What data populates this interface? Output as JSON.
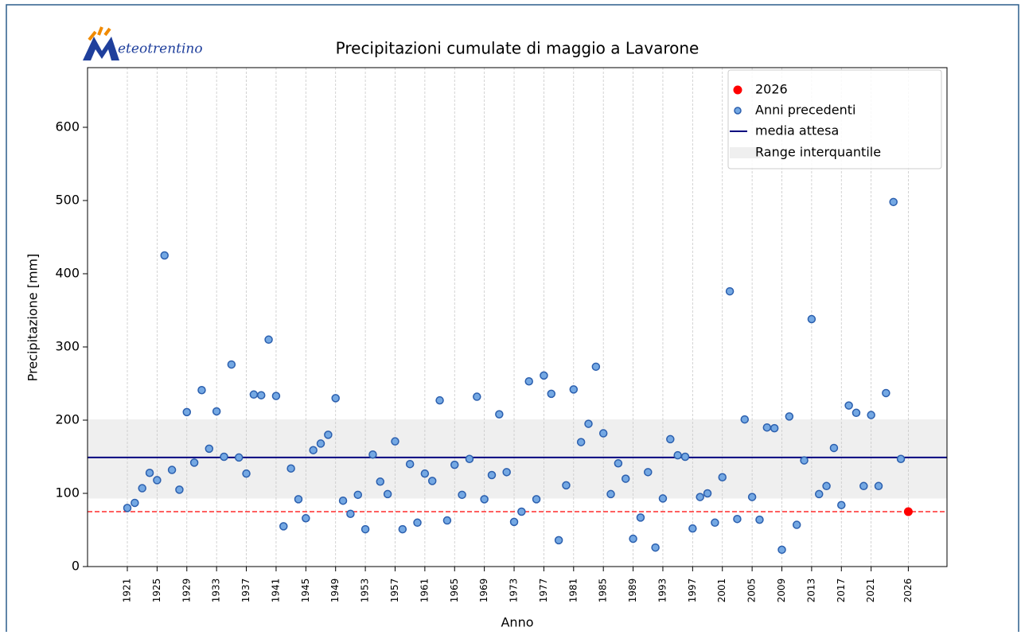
{
  "chart_data": {
    "type": "scatter",
    "logo": "eteotrentino",
    "title": "Precipitazioni cumulate di maggio a Lavarone",
    "x_label": "Anno",
    "y_label": "Precipitazione [mm]",
    "xlim": [
      1915.65,
      2031.2
    ],
    "ylim": [
      0,
      681.5
    ],
    "xticks": [
      1921,
      1925,
      1929,
      1933,
      1937,
      1941,
      1945,
      1949,
      1953,
      1957,
      1961,
      1965,
      1969,
      1973,
      1977,
      1981,
      1985,
      1989,
      1993,
      1997,
      2001,
      2005,
      2009,
      2013,
      2017,
      2021,
      2026
    ],
    "yticks": [
      0,
      100,
      200,
      300,
      400,
      500,
      600
    ],
    "grid": "x",
    "legend": "upper right",
    "series": [
      {
        "name": "2026",
        "color": "#ff0000",
        "x": [
          2026
        ],
        "values": [
          75
        ]
      },
      {
        "name": "Anni precedenti",
        "color": "#74a8e3",
        "x": [
          1921,
          1922,
          1923,
          1924,
          1925,
          1926,
          1927,
          1928,
          1929,
          1930,
          1931,
          1932,
          1933,
          1934,
          1935,
          1936,
          1937,
          1938,
          1939,
          1940,
          1941,
          1942,
          1943,
          1944,
          1945,
          1946,
          1947,
          1948,
          1949,
          1950,
          1951,
          1952,
          1953,
          1954,
          1955,
          1956,
          1957,
          1958,
          1959,
          1960,
          1961,
          1962,
          1963,
          1964,
          1965,
          1966,
          1967,
          1968,
          1969,
          1970,
          1971,
          1972,
          1973,
          1974,
          1975,
          1976,
          1977,
          1978,
          1979,
          1980,
          1981,
          1982,
          1983,
          1984,
          1985,
          1986,
          1987,
          1988,
          1989,
          1990,
          1991,
          1992,
          1993,
          1994,
          1995,
          1996,
          1997,
          1998,
          1999,
          2000,
          2001,
          2002,
          2003,
          2004,
          2005,
          2006,
          2007,
          2008,
          2009,
          2010,
          2011,
          2012,
          2013,
          2014,
          2015,
          2016,
          2017,
          2018,
          2019,
          2020,
          2021,
          2022,
          2023,
          2024,
          2025
        ],
        "values": [
          80,
          87,
          107,
          128,
          118,
          425,
          132,
          105,
          211,
          142,
          241,
          161,
          212,
          150,
          276,
          149,
          127,
          235,
          234,
          310,
          233,
          55,
          134,
          92,
          66,
          159,
          168,
          180,
          230,
          90,
          72,
          98,
          51,
          153,
          116,
          99,
          171,
          51,
          140,
          60,
          127,
          117,
          227,
          63,
          139,
          98,
          147,
          232,
          92,
          125,
          208,
          129,
          61,
          75,
          253,
          92,
          261,
          236,
          36,
          111,
          242,
          170,
          195,
          273,
          182,
          99,
          141,
          120,
          38,
          67,
          129,
          26,
          93,
          174,
          152,
          150,
          52,
          95,
          100,
          60,
          122,
          376,
          65,
          201,
          95,
          64,
          190,
          189,
          23,
          205,
          57,
          145,
          338,
          99,
          110,
          162,
          84,
          220,
          210,
          110,
          207,
          110,
          237,
          498,
          147
        ]
      },
      {
        "name": "media attesa",
        "color": "#00007f",
        "value": 149
      },
      {
        "name": "Range interquantile",
        "color": "#efefef",
        "range": [
          93,
          201
        ]
      }
    ]
  }
}
